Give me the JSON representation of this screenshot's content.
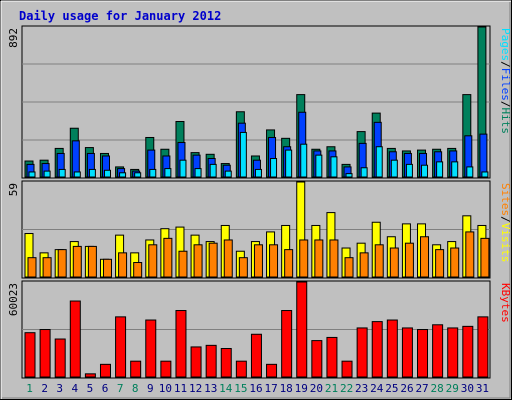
{
  "colors": {
    "background": "#C0C0C0",
    "plot_bg": "#C0C0C0",
    "title": "#0000CC",
    "gridline": "#808080",
    "hits": "#00805C",
    "files": "#0040FF",
    "pages": "#00E0FF",
    "visits": "#FFFF00",
    "sites": "#FF8000",
    "kbytes": "#FF0000",
    "weekend_day": "#00805C",
    "weekday_day": "#000080"
  },
  "chart_data": [
    {
      "type": "bar",
      "title": "Daily usage for January 2012",
      "ylim": [
        0,
        892
      ],
      "y_tick_label": "892",
      "right_label": [
        "Pages",
        "/",
        "Files",
        "/",
        "Hits"
      ],
      "categories": [
        "1",
        "2",
        "3",
        "4",
        "5",
        "6",
        "7",
        "8",
        "9",
        "10",
        "11",
        "12",
        "13",
        "14",
        "15",
        "16",
        "17",
        "18",
        "19",
        "20",
        "21",
        "22",
        "23",
        "24",
        "25",
        "26",
        "27",
        "28",
        "29",
        "30",
        "31"
      ],
      "series": [
        {
          "name": "Hits",
          "values": [
            95,
            100,
            170,
            290,
            175,
            140,
            60,
            45,
            235,
            165,
            330,
            145,
            135,
            80,
            388,
            125,
            280,
            230,
            490,
            165,
            180,
            75,
            270,
            380,
            170,
            155,
            160,
            165,
            170,
            490,
            892
          ]
        },
        {
          "name": "Files",
          "values": [
            75,
            80,
            140,
            215,
            140,
            125,
            50,
            35,
            160,
            125,
            205,
            130,
            110,
            70,
            320,
            100,
            235,
            180,
            385,
            155,
            155,
            60,
            200,
            325,
            150,
            140,
            140,
            150,
            155,
            245,
            255
          ]
        },
        {
          "name": "Pages",
          "values": [
            30,
            35,
            45,
            30,
            45,
            40,
            25,
            25,
            45,
            50,
            100,
            50,
            75,
            35,
            265,
            45,
            110,
            160,
            195,
            130,
            120,
            20,
            55,
            180,
            100,
            75,
            70,
            90,
            90,
            60,
            30
          ]
        }
      ]
    },
    {
      "type": "bar",
      "ylim": [
        0,
        59
      ],
      "y_tick_label": "59",
      "right_label": [
        "Sites",
        "/",
        "Visits"
      ],
      "categories": [
        "1",
        "2",
        "3",
        "4",
        "5",
        "6",
        "7",
        "8",
        "9",
        "10",
        "11",
        "12",
        "13",
        "14",
        "15",
        "16",
        "17",
        "18",
        "19",
        "20",
        "21",
        "22",
        "23",
        "24",
        "25",
        "26",
        "27",
        "28",
        "29",
        "30",
        "31"
      ],
      "series": [
        {
          "name": "Visits",
          "values": [
            27,
            15,
            17,
            22,
            19,
            11,
            26,
            15,
            23,
            30,
            31,
            26,
            22,
            32,
            16,
            22,
            28,
            32,
            59,
            32,
            40,
            18,
            21,
            34,
            25,
            33,
            33,
            20,
            22,
            38,
            32
          ]
        },
        {
          "name": "Sites",
          "values": [
            12,
            12,
            17,
            19,
            19,
            11,
            15,
            9,
            20,
            24,
            16,
            20,
            21,
            23,
            12,
            20,
            20,
            17,
            23,
            23,
            23,
            12,
            15,
            20,
            18,
            21,
            25,
            17,
            18,
            28,
            24
          ]
        }
      ]
    },
    {
      "type": "bar",
      "ylim": [
        0,
        60023
      ],
      "y_tick_label": "60023",
      "right_label": [
        "KBytes"
      ],
      "categories": [
        "1",
        "2",
        "3",
        "4",
        "5",
        "6",
        "7",
        "8",
        "9",
        "10",
        "11",
        "12",
        "13",
        "14",
        "15",
        "16",
        "17",
        "18",
        "19",
        "20",
        "21",
        "22",
        "23",
        "24",
        "25",
        "26",
        "27",
        "28",
        "29",
        "30",
        "31"
      ],
      "series": [
        {
          "name": "KBytes",
          "values": [
            28000,
            30000,
            24000,
            48000,
            2000,
            8000,
            38000,
            10000,
            36000,
            10000,
            42000,
            19000,
            20000,
            18000,
            10000,
            27000,
            8000,
            42000,
            60023,
            23000,
            25000,
            10000,
            31000,
            35000,
            36000,
            31000,
            30000,
            33000,
            31000,
            32000,
            38000
          ]
        }
      ]
    }
  ],
  "weekend_days": [
    "1",
    "7",
    "8",
    "14",
    "15",
    "21",
    "22",
    "28",
    "29"
  ]
}
